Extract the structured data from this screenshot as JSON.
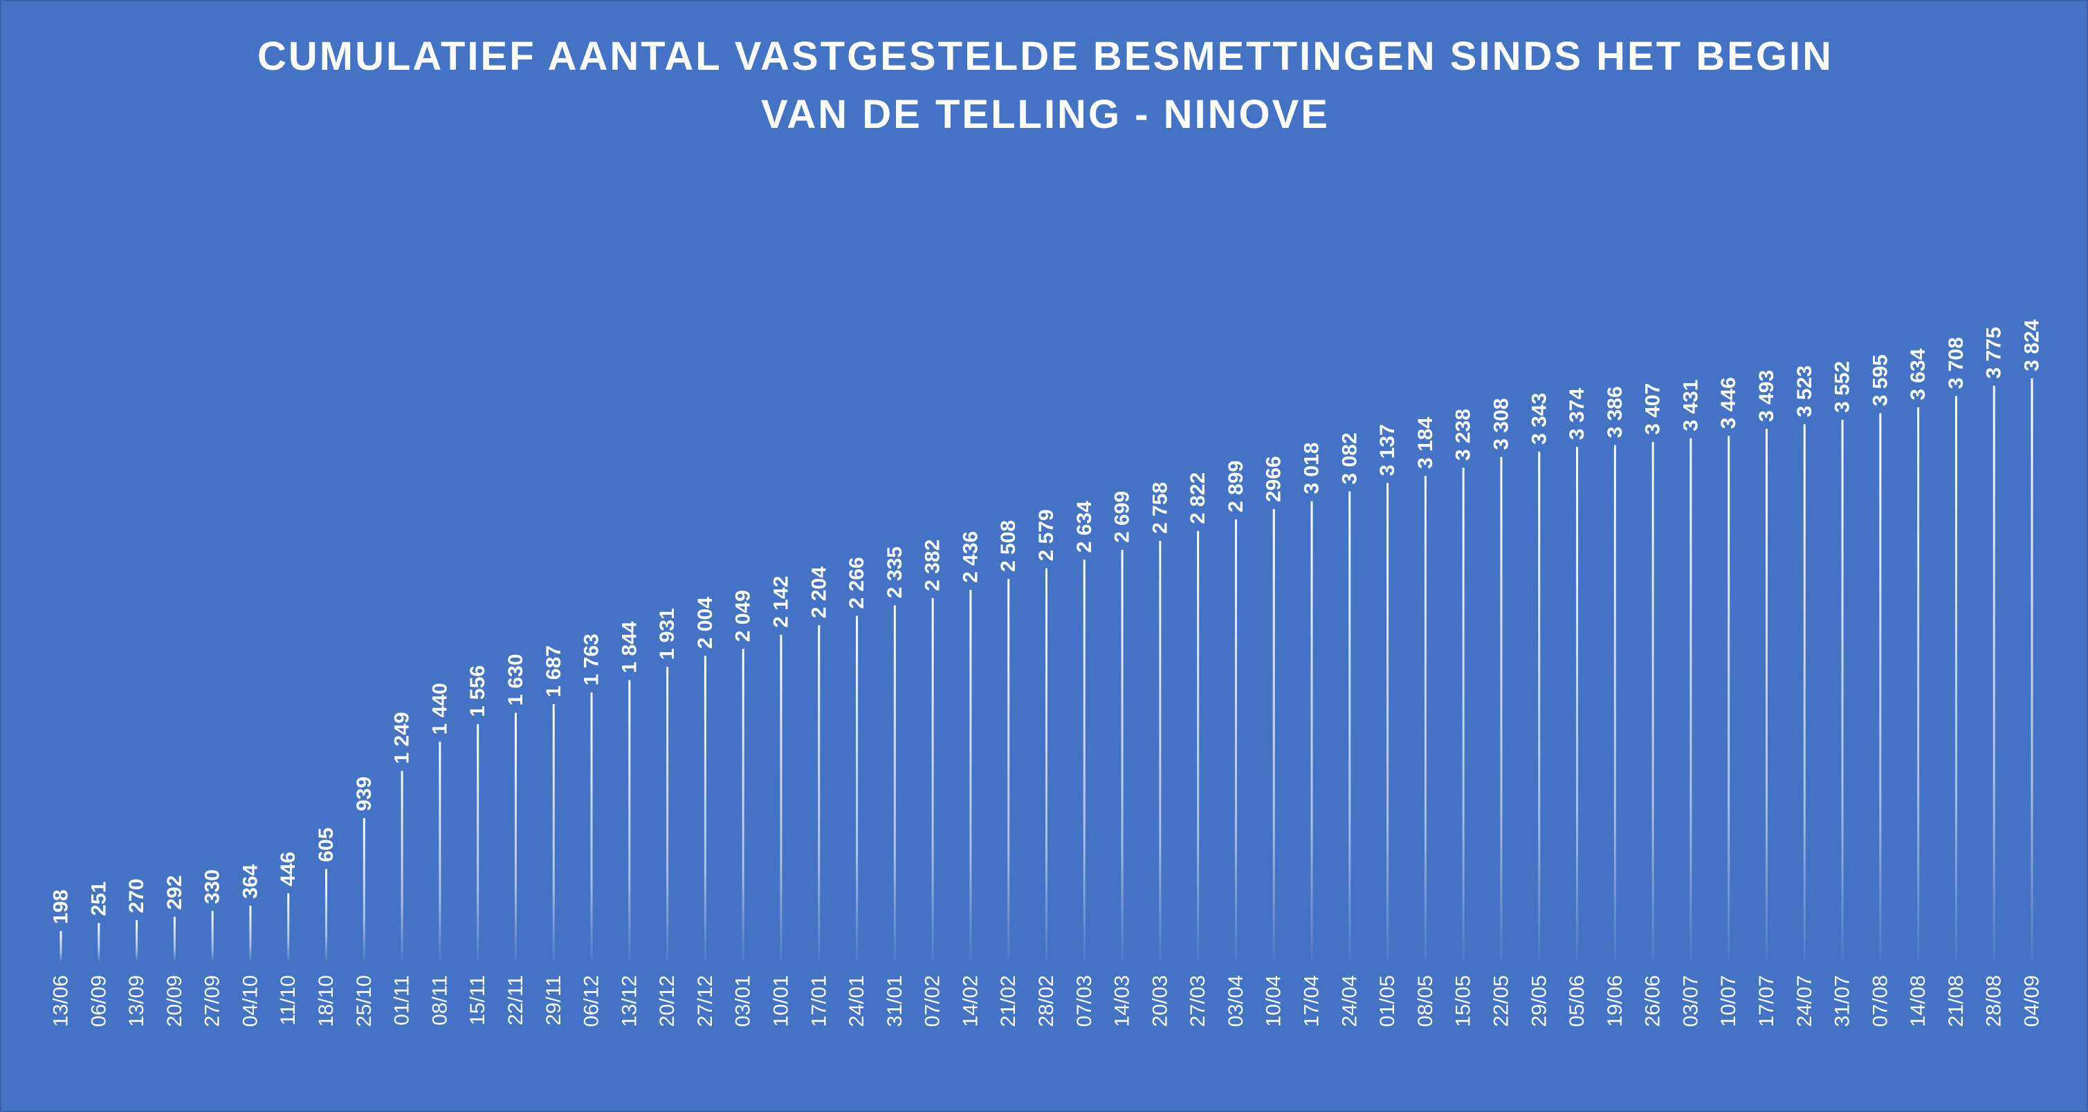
{
  "chart_data": {
    "type": "bar",
    "title": "CUMULATIEF AANTAL VASTGESTELDE BESMETTINGEN SINDS HET BEGIN\nVAN DE TELLING - NINOVE",
    "xlabel": "",
    "ylabel": "",
    "ylim": [
      0,
      3824
    ],
    "grid": false,
    "legend": "none",
    "colors": {
      "background": "#4472C4",
      "bar": "#ffffff",
      "text": "#ffffff"
    },
    "categories": [
      "13/06",
      "06/09",
      "13/09",
      "20/09",
      "27/09",
      "04/10",
      "11/10",
      "18/10",
      "25/10",
      "01/11",
      "08/11",
      "15/11",
      "22/11",
      "29/11",
      "06/12",
      "13/12",
      "20/12",
      "27/12",
      "03/01",
      "10/01",
      "17/01",
      "24/01",
      "31/01",
      "07/02",
      "14/02",
      "21/02",
      "28/02",
      "07/03",
      "14/03",
      "20/03",
      "27/03",
      "03/04",
      "10/04",
      "17/04",
      "24/04",
      "01/05",
      "08/05",
      "15/05",
      "22/05",
      "29/05",
      "05/06",
      "19/06",
      "26/06",
      "03/07",
      "10/07",
      "17/07",
      "24/07",
      "31/07",
      "07/08",
      "14/08",
      "21/08",
      "28/08",
      "04/09"
    ],
    "values": [
      198,
      251,
      270,
      292,
      330,
      364,
      446,
      605,
      939,
      1249,
      1440,
      1556,
      1630,
      1687,
      1763,
      1844,
      1931,
      2004,
      2049,
      2142,
      2204,
      2266,
      2335,
      2382,
      2436,
      2508,
      2579,
      2634,
      2699,
      2758,
      2822,
      2899,
      2966,
      3018,
      3082,
      3137,
      3184,
      3238,
      3308,
      3343,
      3374,
      3386,
      3407,
      3431,
      3446,
      3493,
      3523,
      3552,
      3595,
      3634,
      3708,
      3775,
      3824
    ],
    "data_labels": [
      "198",
      "251",
      "270",
      "292",
      "330",
      "364",
      "446",
      "605",
      "939",
      "1 249",
      "1 440",
      "1 556",
      "1 630",
      "1 687",
      "1 763",
      "1 844",
      "1 931",
      "2 004",
      "2 049",
      "2 142",
      "2 204",
      "2 266",
      "2 335",
      "2 382",
      "2 436",
      "2 508",
      "2 579",
      "2 634",
      "2 699",
      "2 758",
      "2 822",
      "2 899",
      "2966",
      "3 018",
      "3 082",
      "3 137",
      "3 184",
      "3 238",
      "3 308",
      "3 343",
      "3 374",
      "3 386",
      "3 407",
      "3 431",
      "3 446",
      "3 493",
      "3 523",
      "3 552",
      "3 595",
      "3 634",
      "3 708",
      "3 775",
      "3 824"
    ]
  }
}
